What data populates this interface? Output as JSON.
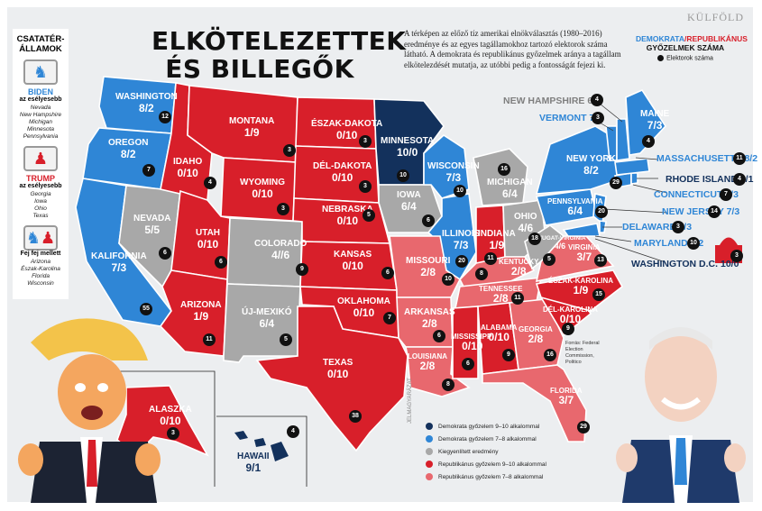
{
  "header": {
    "section": "KÜLFÖLD",
    "title_line1": "ELKÖTELEZETTEK",
    "title_line2": "ÉS BILLEGŐK",
    "intro": "A térképen az előző tíz amerikai elnökválasztás (1980–2016) eredménye és az egyes tagállamokhoz tartozó elektorok száma látható. A demokrata és republikánus győzelmek aránya a tagállam elkötelezdését mutatja, az utóbbi pedig a fontosságát fejezi ki."
  },
  "legend_top": {
    "dem": "DEMOKRATA",
    "slash": "/",
    "rep": "REPUBLIKÁNUS",
    "line2": "GYŐZELMEK SZÁMA",
    "elector_label": "Elektorok száma"
  },
  "sidebar": {
    "heading": "CSATATÉR-\nÁLLAMOK",
    "biden": {
      "name": "BIDEN",
      "sub": "az esélyesebb",
      "states": [
        "Nevada",
        "New Hampshire",
        "Michigan",
        "Minnesota",
        "Pennsylvania"
      ]
    },
    "trump": {
      "name": "TRUMP",
      "sub": "az esélyesebb",
      "states": [
        "Georgia",
        "Iowa",
        "Ohio",
        "Texas"
      ]
    },
    "tossup": {
      "name": "Fej fej mellett",
      "states": [
        "Arizona",
        "Észak-Karolina",
        "Florida",
        "Wisconsin"
      ]
    }
  },
  "legend_bottom": {
    "vertical": "JELMAGYARÁZAT",
    "items": [
      {
        "label": "Demokrata győzelem 9–10 alkalommal",
        "color": "#13315c"
      },
      {
        "label": "Demokrata győzelem 7–8 alkalommal",
        "color": "#2f86d6"
      },
      {
        "label": "Kiegyenlített eredmény",
        "color": "#a8a8a8"
      },
      {
        "label": "Republikánus győzelem 9–10 alkalommal",
        "color": "#d81f2a"
      },
      {
        "label": "Republikánus győzelem 7–8 alkalommal",
        "color": "#e8686e"
      }
    ]
  },
  "source": "Forrás: Federal Election Commission, Politico",
  "colors": {
    "dem_dark": "#13315c",
    "dem": "#2f86d6",
    "swing": "#a8a8a8",
    "rep_dark": "#d81f2a",
    "rep": "#e8686e"
  },
  "states": {
    "wa": {
      "name": "WASHINGTON",
      "score": "8/2",
      "ev": "12"
    },
    "or": {
      "name": "OREGON",
      "score": "8/2",
      "ev": "7"
    },
    "ca": {
      "name": "KALIFORNIA",
      "score": "7/3",
      "ev": "55"
    },
    "nv": {
      "name": "NEVADA",
      "score": "5/5",
      "ev": "6"
    },
    "id": {
      "name": "IDAHO",
      "score": "0/10",
      "ev": "4"
    },
    "mt": {
      "name": "MONTANA",
      "score": "1/9",
      "ev": "3"
    },
    "wy": {
      "name": "WYOMING",
      "score": "0/10",
      "ev": "3"
    },
    "ut": {
      "name": "UTAH",
      "score": "0/10",
      "ev": "6"
    },
    "az": {
      "name": "ARIZONA",
      "score": "1/9",
      "ev": "11"
    },
    "co": {
      "name": "COLORADO",
      "score": "4//6",
      "ev": "9"
    },
    "nm": {
      "name": "ÚJ-MEXIKÓ",
      "score": "6/4",
      "ev": "5"
    },
    "nd": {
      "name": "ÉSZAK-DAKOTA",
      "score": "0/10",
      "ev": "3"
    },
    "sd": {
      "name": "DÉL-DAKOTA",
      "score": "0/10",
      "ev": "3"
    },
    "ne": {
      "name": "NEBRASKA",
      "score": "0/10",
      "ev": "5"
    },
    "ks": {
      "name": "KANSAS",
      "score": "0/10",
      "ev": "6"
    },
    "ok": {
      "name": "OKLAHOMA",
      "score": "0/10",
      "ev": "7"
    },
    "tx": {
      "name": "TEXAS",
      "score": "0/10",
      "ev": "38"
    },
    "mn": {
      "name": "MINNESOTA",
      "score": "10/0",
      "ev": "10"
    },
    "ia": {
      "name": "IOWA",
      "score": "6/4",
      "ev": "6"
    },
    "mo": {
      "name": "MISSOURI",
      "score": "2/8",
      "ev": "10"
    },
    "ar": {
      "name": "ARKANSAS",
      "score": "2/8",
      "ev": "6"
    },
    "la": {
      "name": "LOUISIANA",
      "score": "2/8",
      "ev": "8"
    },
    "wi": {
      "name": "WISCONSIN",
      "score": "7/3",
      "ev": "10"
    },
    "il": {
      "name": "ILLINOIS",
      "score": "7/3",
      "ev": "20"
    },
    "mi": {
      "name": "MICHIGAN",
      "score": "6/4",
      "ev": "16"
    },
    "in": {
      "name": "INDIANA",
      "score": "1/9",
      "ev": "11"
    },
    "oh": {
      "name": "OHIO",
      "score": "4/6",
      "ev": "18"
    },
    "ky": {
      "name": "KENTUCKY",
      "score": "2/8",
      "ev": "8"
    },
    "tn": {
      "name": "TENNESSEE",
      "score": "2/8",
      "ev": "11"
    },
    "ms": {
      "name": "MISSISSIPPI",
      "score": "0/10",
      "ev": "6"
    },
    "al": {
      "name": "ALABAMA",
      "score": "0/10",
      "ev": "9"
    },
    "ga": {
      "name": "GEORGIA",
      "score": "2/8",
      "ev": "16"
    },
    "fl": {
      "name": "FLORIDA",
      "score": "3/7",
      "ev": "29"
    },
    "sc": {
      "name": "DÉL-KAROLINA",
      "score": "0/10",
      "ev": "9"
    },
    "nc": {
      "name": "ÉSZAK-KAROLINA",
      "score": "1/9",
      "ev": "15"
    },
    "va": {
      "name": "VIRGINIA",
      "score": "3/7",
      "ev": "13"
    },
    "wv": {
      "name": "NYUGAT-VIRGINIA",
      "score": "4/6",
      "ev": "5"
    },
    "pa": {
      "name": "PENNSYLVANIA",
      "score": "6/4",
      "ev": "20"
    },
    "ny": {
      "name": "NEW YORK",
      "score": "8/2",
      "ev": "29"
    },
    "me": {
      "name": "MAINE",
      "score": "7/3",
      "ev": "4"
    },
    "nh": {
      "name": "NEW HAMPSHIRE",
      "score": "6/4",
      "ev": "4"
    },
    "vt": {
      "name": "VERMONT",
      "score": "7/3",
      "ev": "3"
    },
    "ma": {
      "name": "MASSACHUSETTS",
      "score": "8/2",
      "ev": "11"
    },
    "ri": {
      "name": "RHODE ISLAND",
      "score": "9/1",
      "ev": "4"
    },
    "ct": {
      "name": "CONNECTICUT",
      "score": "7/3",
      "ev": "7"
    },
    "nj": {
      "name": "NEW JERSEY",
      "score": "7/3",
      "ev": "14"
    },
    "de": {
      "name": "DELAWARE",
      "score": "7/3",
      "ev": "3"
    },
    "md": {
      "name": "MARYLAND",
      "score": "8/2",
      "ev": "10"
    },
    "dc": {
      "name": "WASHINGTON D.C.",
      "score": "10/0",
      "ev": "3"
    },
    "ak": {
      "name": "ALASZKA",
      "score": "0/10",
      "ev": "3"
    },
    "hi": {
      "name": "HAWAII",
      "score": "9/1",
      "ev": "4"
    }
  }
}
